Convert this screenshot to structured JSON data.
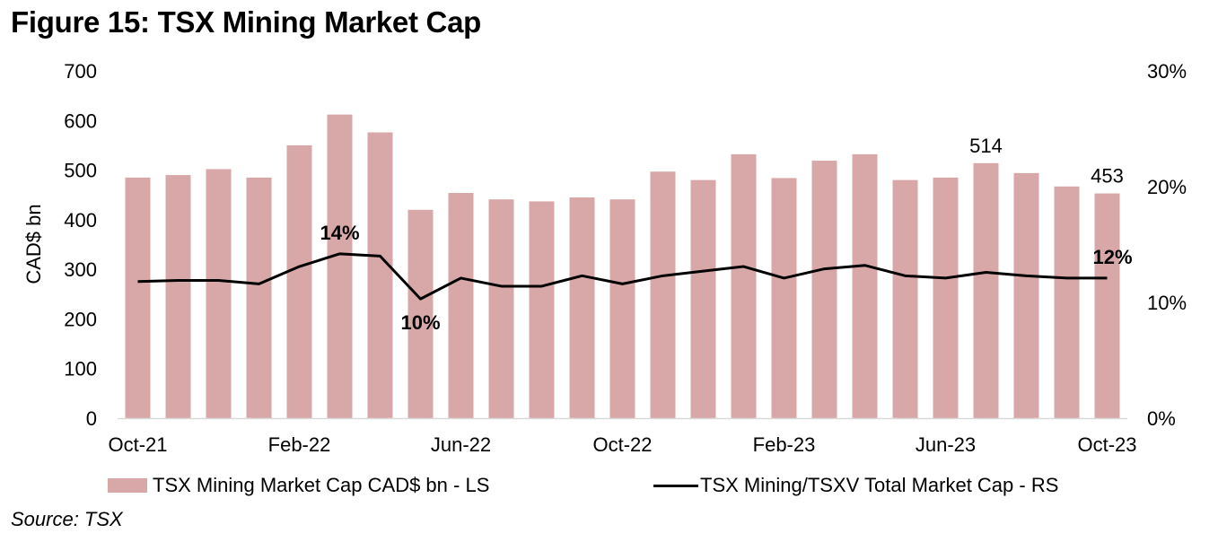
{
  "title": "Figure 15: TSX Mining Market Cap",
  "source": "Source: TSX",
  "colors": {
    "bar": "#d8a8a8",
    "line": "#000000",
    "axis": "#d9d9d9"
  },
  "chart_data": {
    "type": "bar+line",
    "title": "Figure 15: TSX Mining Market Cap",
    "categories": [
      "Oct-21",
      "Nov-21",
      "Dec-21",
      "Jan-22",
      "Feb-22",
      "Mar-22",
      "Apr-22",
      "May-22",
      "Jun-22",
      "Jul-22",
      "Aug-22",
      "Sep-22",
      "Oct-22",
      "Nov-22",
      "Dec-22",
      "Jan-23",
      "Feb-23",
      "Mar-23",
      "Apr-23",
      "May-23",
      "Jun-23",
      "Jul-23",
      "Aug-23",
      "Sep-23",
      "Oct-23"
    ],
    "x_tick_labels": [
      "Oct-21",
      "Feb-22",
      "Jun-22",
      "Oct-22",
      "Feb-23",
      "Jun-23",
      "Oct-23"
    ],
    "series": [
      {
        "name": "TSX Mining Market Cap CAD$ bn - LS",
        "type": "bar",
        "axis": "left",
        "values": [
          485,
          490,
          502,
          485,
          550,
          612,
          576,
          420,
          454,
          441,
          437,
          445,
          441,
          497,
          480,
          532,
          484,
          519,
          532,
          480,
          485,
          514,
          494,
          467,
          453
        ]
      },
      {
        "name": "TSX Mining/TSXV Total Market Cap - RS",
        "type": "line",
        "axis": "right",
        "values": [
          11.8,
          11.9,
          11.9,
          11.6,
          13.1,
          14.2,
          14.0,
          10.3,
          12.1,
          11.4,
          11.4,
          12.3,
          11.6,
          12.3,
          12.7,
          13.1,
          12.1,
          12.9,
          13.2,
          12.3,
          12.1,
          12.6,
          12.3,
          12.1,
          12.1
        ]
      }
    ],
    "ylabel": "CAD$ bn",
    "ylim": [
      0,
      700
    ],
    "y_ticks": [
      "0",
      "100",
      "200",
      "300",
      "400",
      "500",
      "600",
      "700"
    ],
    "y2lim": [
      0,
      30
    ],
    "y2_ticks": [
      "0%",
      "10%",
      "20%",
      "30%"
    ],
    "annotations": [
      {
        "series": 0,
        "index": 21,
        "text": "514"
      },
      {
        "series": 0,
        "index": 24,
        "text": "453"
      },
      {
        "series": 1,
        "index": 5,
        "text": "14%",
        "bold": true
      },
      {
        "series": 1,
        "index": 7,
        "text": "10%",
        "bold": true
      },
      {
        "series": 1,
        "index": 24,
        "text": "12%",
        "bold": true
      }
    ],
    "grid": false,
    "legend_position": "bottom"
  },
  "legend": [
    {
      "label": "TSX Mining Market Cap CAD$ bn - LS"
    },
    {
      "label": "TSX Mining/TSXV Total Market Cap - RS"
    }
  ]
}
